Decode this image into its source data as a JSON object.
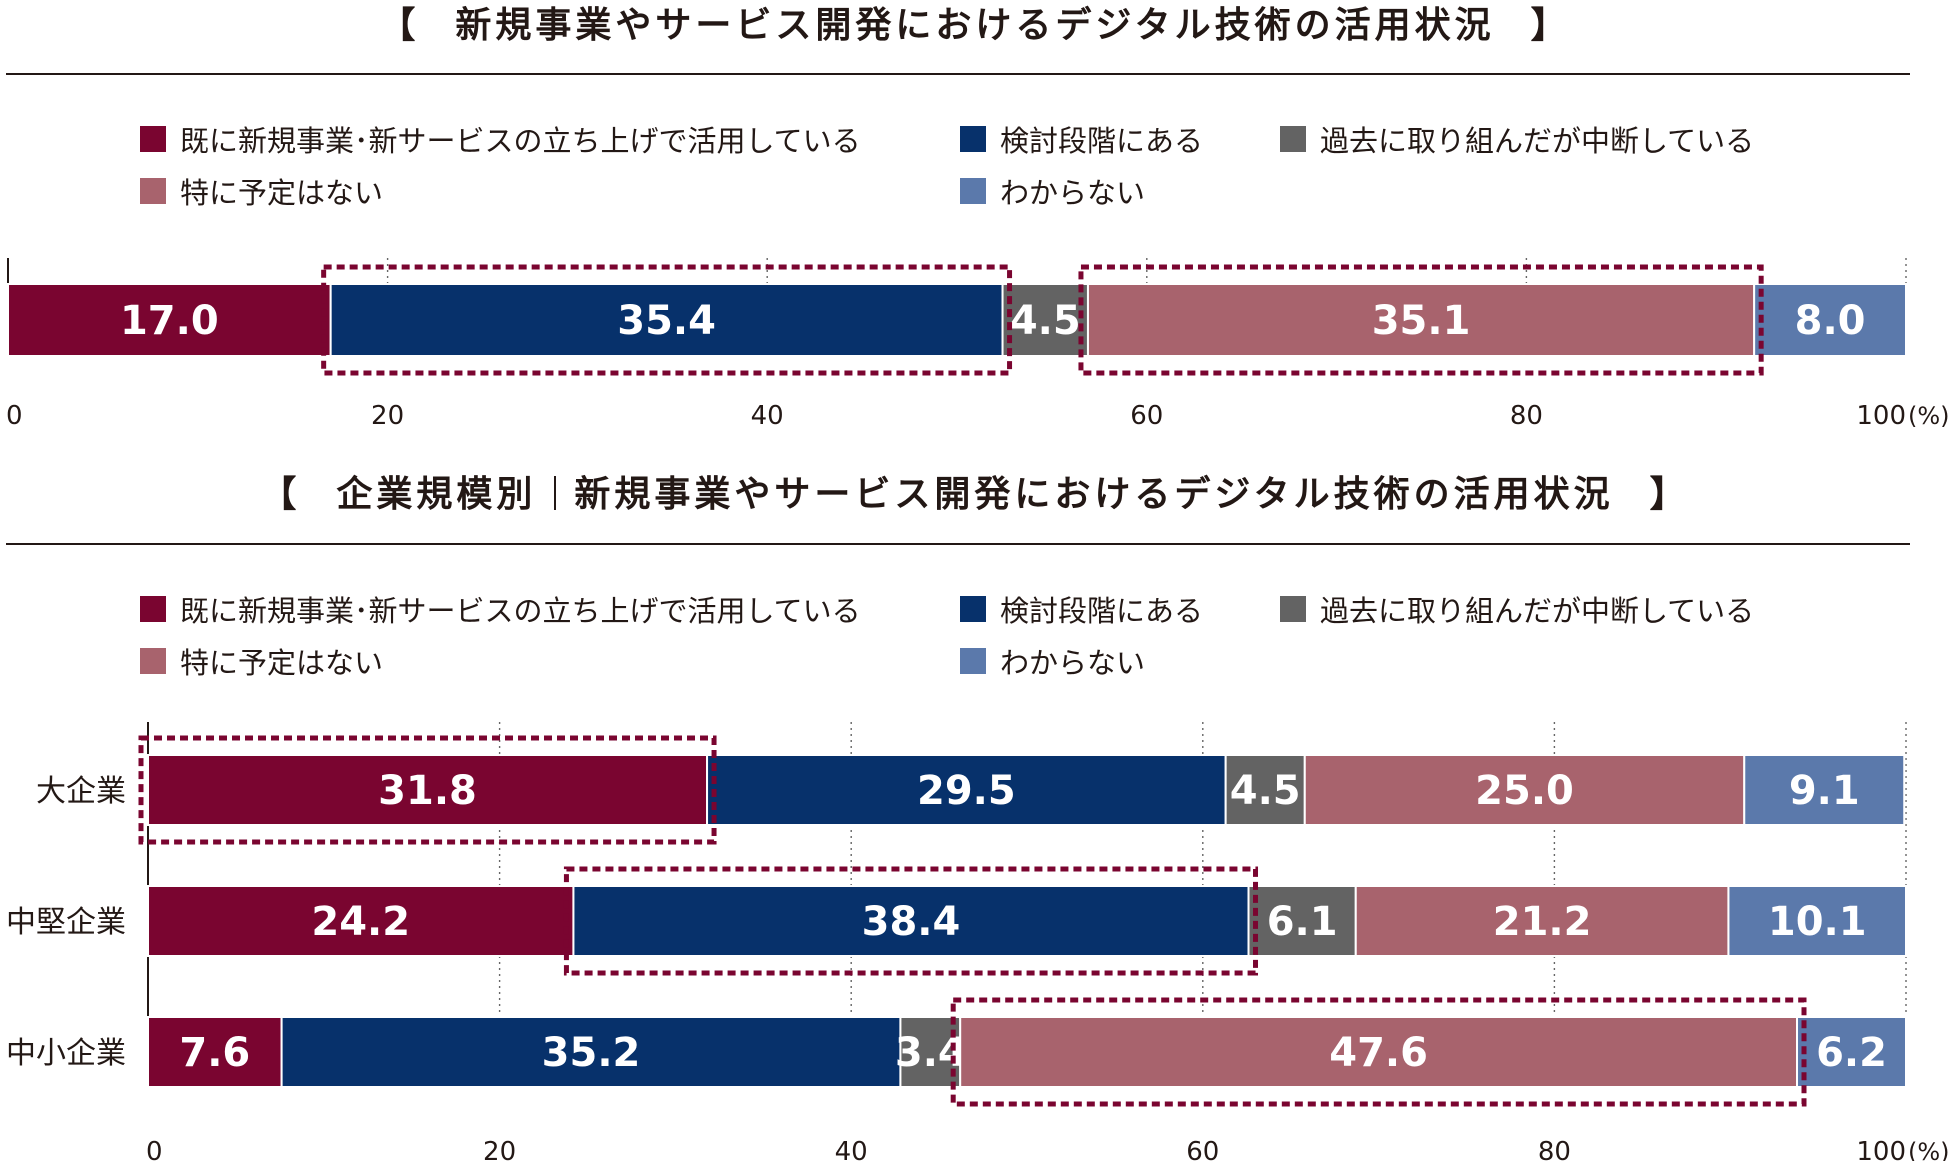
{
  "colors": {
    "already_using": "#7a0530",
    "considering": "#07316b",
    "discontinued": "#636363",
    "no_plan": "#a8636d",
    "unknown": "#5b79ab",
    "highlight": "#7a0530",
    "text": "#231815"
  },
  "legend": [
    {
      "key": "already_using",
      "label": "既に新規事業･新サービスの立ち上げで活用している"
    },
    {
      "key": "considering",
      "label": "検討段階にある"
    },
    {
      "key": "discontinued",
      "label": "過去に取り組んだが中断している"
    },
    {
      "key": "no_plan",
      "label": "特に予定はない"
    },
    {
      "key": "unknown",
      "label": "わからない"
    }
  ],
  "chart_data": [
    {
      "type": "bar",
      "orientation": "horizontal",
      "stacked": "100%",
      "title": "新規事業やサービス開発におけるデジタル技術の活用状況",
      "title_brackets": [
        "【",
        "】"
      ],
      "categories": [
        ""
      ],
      "series": [
        {
          "name": "既に新規事業･新サービスの立ち上げで活用している",
          "values": [
            17.0
          ],
          "labels": [
            "17.0"
          ]
        },
        {
          "name": "検討段階にある",
          "values": [
            35.4
          ],
          "labels": [
            "35.4"
          ]
        },
        {
          "name": "過去に取り組んだが中断している",
          "values": [
            4.5
          ],
          "labels": [
            "4.5"
          ]
        },
        {
          "name": "特に予定はない",
          "values": [
            35.1
          ],
          "labels": [
            "35.1"
          ]
        },
        {
          "name": "わからない",
          "values": [
            8.0
          ],
          "labels": [
            "8.0"
          ]
        }
      ],
      "highlighted": [
        [
          0,
          1
        ],
        [
          0,
          3
        ]
      ],
      "xlim": [
        0,
        100
      ],
      "xticks": [
        "0",
        "20",
        "40",
        "60",
        "80",
        "100"
      ],
      "xunit": "(%)",
      "grid": "dotted vertical"
    },
    {
      "type": "bar",
      "orientation": "horizontal",
      "stacked": "100%",
      "title_prefix": "企業規模別",
      "title": "新規事業やサービス開発におけるデジタル技術の活用状況",
      "title_brackets": [
        "【",
        "】"
      ],
      "categories": [
        "大企業",
        "中堅企業",
        "中小企業"
      ],
      "series": [
        {
          "name": "既に新規事業･新サービスの立ち上げで活用している",
          "values": [
            31.8,
            24.2,
            7.6
          ],
          "labels": [
            "31.8",
            "24.2",
            "7.6"
          ]
        },
        {
          "name": "検討段階にある",
          "values": [
            29.5,
            38.4,
            35.2
          ],
          "labels": [
            "29.5",
            "38.4",
            "35.2"
          ]
        },
        {
          "name": "過去に取り組んだが中断している",
          "values": [
            4.5,
            6.1,
            3.4
          ],
          "labels": [
            "4.5",
            "6.1",
            "3.4"
          ]
        },
        {
          "name": "特に予定はない",
          "values": [
            25.0,
            21.2,
            47.6
          ],
          "labels": [
            "25.0",
            "21.2",
            "47.6"
          ]
        },
        {
          "name": "わからない",
          "values": [
            9.1,
            10.1,
            6.2
          ],
          "labels": [
            "9.1",
            "10.1",
            "6.2"
          ]
        }
      ],
      "highlighted": [
        [
          0,
          0
        ],
        [
          1,
          1
        ],
        [
          2,
          3
        ]
      ],
      "xlim": [
        0,
        100
      ],
      "xticks": [
        "0",
        "20",
        "40",
        "60",
        "80",
        "100"
      ],
      "xunit": "(%)",
      "grid": "dotted vertical"
    }
  ]
}
